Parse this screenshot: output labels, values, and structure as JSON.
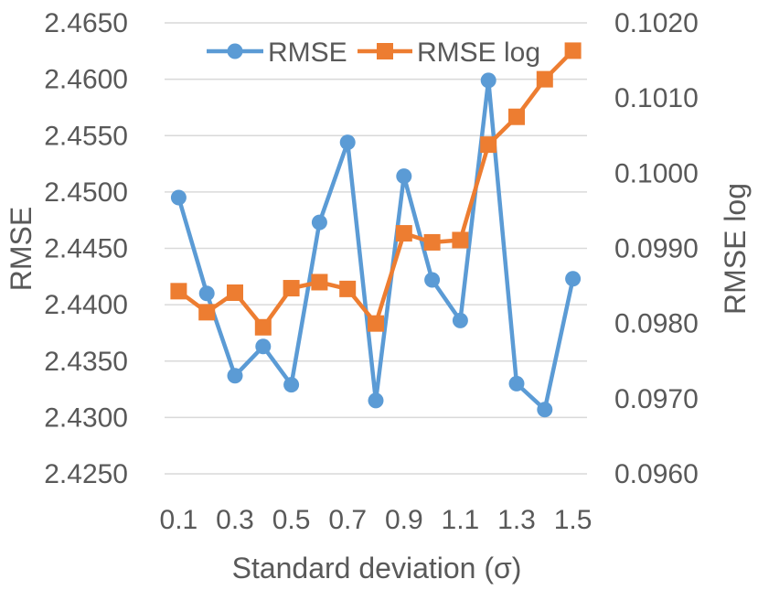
{
  "chart_data": {
    "type": "line",
    "title": "",
    "xlabel": "Standard deviation (σ)",
    "ylabel_left": "RMSE",
    "ylabel_right": "RMSE log",
    "x": [
      0.1,
      0.2,
      0.3,
      0.4,
      0.5,
      0.6,
      0.7,
      0.8,
      0.9,
      1.0,
      1.1,
      1.2,
      1.3,
      1.4,
      1.5
    ],
    "x_tick_labels": [
      "0.1",
      "0.3",
      "0.5",
      "0.7",
      "0.9",
      "1.1",
      "1.3",
      "1.5"
    ],
    "ylim_left": [
      2.425,
      2.465
    ],
    "ylim_right": [
      0.096,
      0.102
    ],
    "y_ticks_left": [
      "2.4250",
      "2.4300",
      "2.4350",
      "2.4400",
      "2.4450",
      "2.4500",
      "2.4550",
      "2.4600",
      "2.4650"
    ],
    "y_ticks_right": [
      "0.0960",
      "0.0970",
      "0.0980",
      "0.0990",
      "0.1000",
      "0.1010",
      "0.1020"
    ],
    "grid": true,
    "legend_position": "top",
    "series": [
      {
        "name": "RMSE",
        "axis": "left",
        "color": "#5b9bd5",
        "marker": "circle",
        "values": [
          2.4495,
          2.441,
          2.4337,
          2.4363,
          2.4329,
          2.4473,
          2.4544,
          2.4315,
          2.4514,
          2.4422,
          2.4386,
          2.4599,
          2.433,
          2.4307,
          2.4423
        ]
      },
      {
        "name": "RMSE log",
        "axis": "right",
        "color": "#ed7d31",
        "marker": "square",
        "values": [
          0.09843,
          0.09815,
          0.09841,
          0.09795,
          0.09847,
          0.09855,
          0.09846,
          0.098,
          0.0992,
          0.09908,
          0.09911,
          0.10038,
          0.10075,
          0.10125,
          0.10163
        ]
      }
    ]
  }
}
